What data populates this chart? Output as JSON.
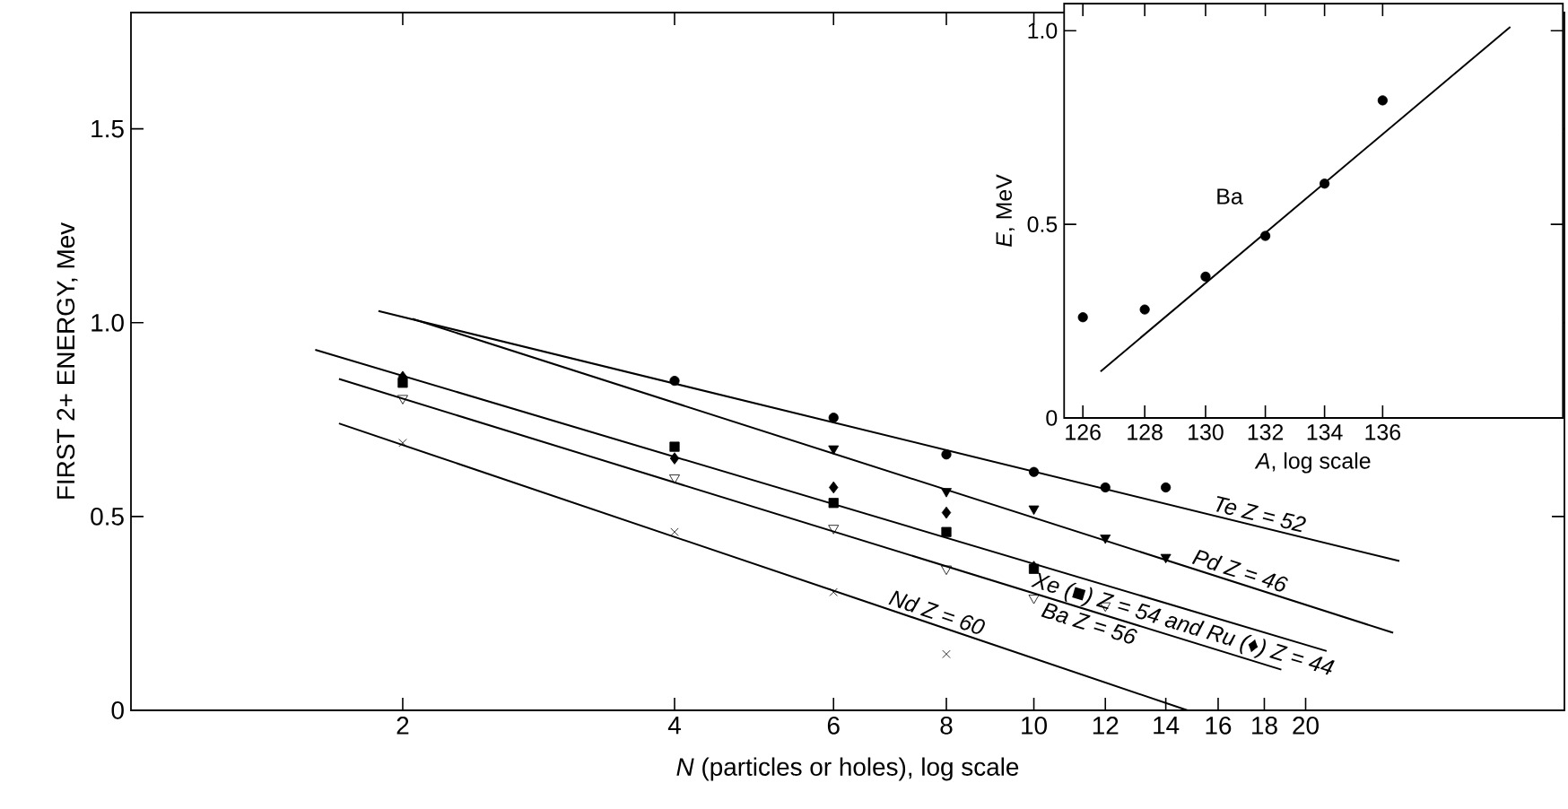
{
  "chart_data": [
    {
      "type": "scatter",
      "xlabel": "*N* (particles or holes), log scale",
      "ylabel": "FIRST 2+ ENERGY, Mev",
      "log": "x",
      "xlim": [
        1,
        38.7
      ],
      "ylim": [
        0,
        1.8
      ],
      "xticks": [
        2,
        4,
        6,
        8,
        10,
        12,
        14,
        16,
        18,
        20
      ],
      "yticks": [
        0,
        {
          "value": 0.5,
          "label": "0.5"
        },
        {
          "value": 1,
          "label": "1.0"
        },
        {
          "value": 1.5,
          "label": "1.5"
        }
      ],
      "series": [
        {
          "color": "#000000",
          "marker": "circle",
          "x": [
            4,
            6,
            8,
            10,
            12,
            14
          ],
          "values": [
            0.85,
            0.755,
            0.66,
            0.615,
            0.575,
            0.575
          ]
        },
        {
          "color": "#000000",
          "marker": "triangle",
          "x": [
            6,
            8,
            10,
            12,
            14
          ],
          "values": [
            0.675,
            0.565,
            0.52,
            0.445,
            0.395
          ]
        },
        {
          "color": "#000000",
          "marker": "square",
          "x": [
            2,
            4,
            6,
            8,
            10
          ],
          "values": [
            0.845,
            0.68,
            0.535,
            0.46,
            0.365
          ]
        },
        {
          "color": "#000000",
          "marker": "diamond",
          "x": [
            2,
            4,
            6,
            8,
            10
          ],
          "values": [
            0.86,
            0.65,
            0.575,
            0.51,
            0.37
          ]
        },
        {
          "color": "#000000",
          "marker": "triangle_open",
          "x": [
            2,
            4,
            6,
            8,
            10,
            12
          ],
          "values": [
            0.805,
            0.6,
            0.47,
            0.365,
            0.29,
            0.27
          ]
        },
        {
          "color": "#000000",
          "marker": "cross",
          "x": [
            2,
            4,
            6,
            8
          ],
          "values": [
            0.69,
            0.46,
            0.305,
            0.145
          ]
        },
        {
          "type": "line",
          "name": "Te Z = 52",
          "color": "#000000",
          "x": [
            1.88,
            25.4
          ],
          "values": [
            1.03,
            0.385
          ]
        },
        {
          "type": "line",
          "name": "Pd Z = 46",
          "color": "#000000",
          "x": [
            2.05,
            25.0
          ],
          "values": [
            1.01,
            0.2
          ]
        },
        {
          "type": "line",
          "name": "Xe (■) Z = 54 and Ru (♦) Z = 44",
          "color": "#000000",
          "x": [
            1.6,
            21.1
          ],
          "values": [
            0.93,
            0.153
          ]
        },
        {
          "type": "line",
          "name": "Ba Z = 56",
          "color": "#000000",
          "x": [
            1.7,
            18.8
          ],
          "values": [
            0.855,
            0.105
          ]
        },
        {
          "type": "line",
          "name": "Nd Z = 60",
          "color": "#000000",
          "x": [
            1.7,
            14.8
          ],
          "values": [
            0.74,
            0
          ]
        }
      ]
    },
    {
      "type": "scatter",
      "xlabel": "*A*, log scale",
      "ylabel": "*E*, MeV",
      "log": "x",
      "xlim": [
        125.4,
        142.4
      ],
      "ylim": [
        0,
        1.07
      ],
      "xticks": [
        126,
        128,
        130,
        132,
        134,
        136
      ],
      "yticks": [
        0,
        {
          "value": 0.5,
          "label": "0.5"
        },
        {
          "value": 1,
          "label": "1.0"
        }
      ],
      "series": [
        {
          "color": "#000000",
          "marker": "circle",
          "x": [
            126,
            128,
            130,
            132,
            134,
            136
          ],
          "values": [
            0.26,
            0.28,
            0.365,
            0.47,
            0.605,
            0.82
          ]
        },
        {
          "type": "line",
          "name": "Ba",
          "color": "#000000",
          "x": [
            126.57,
            140.5
          ],
          "values": [
            0.12,
            1.01
          ]
        }
      ]
    }
  ]
}
